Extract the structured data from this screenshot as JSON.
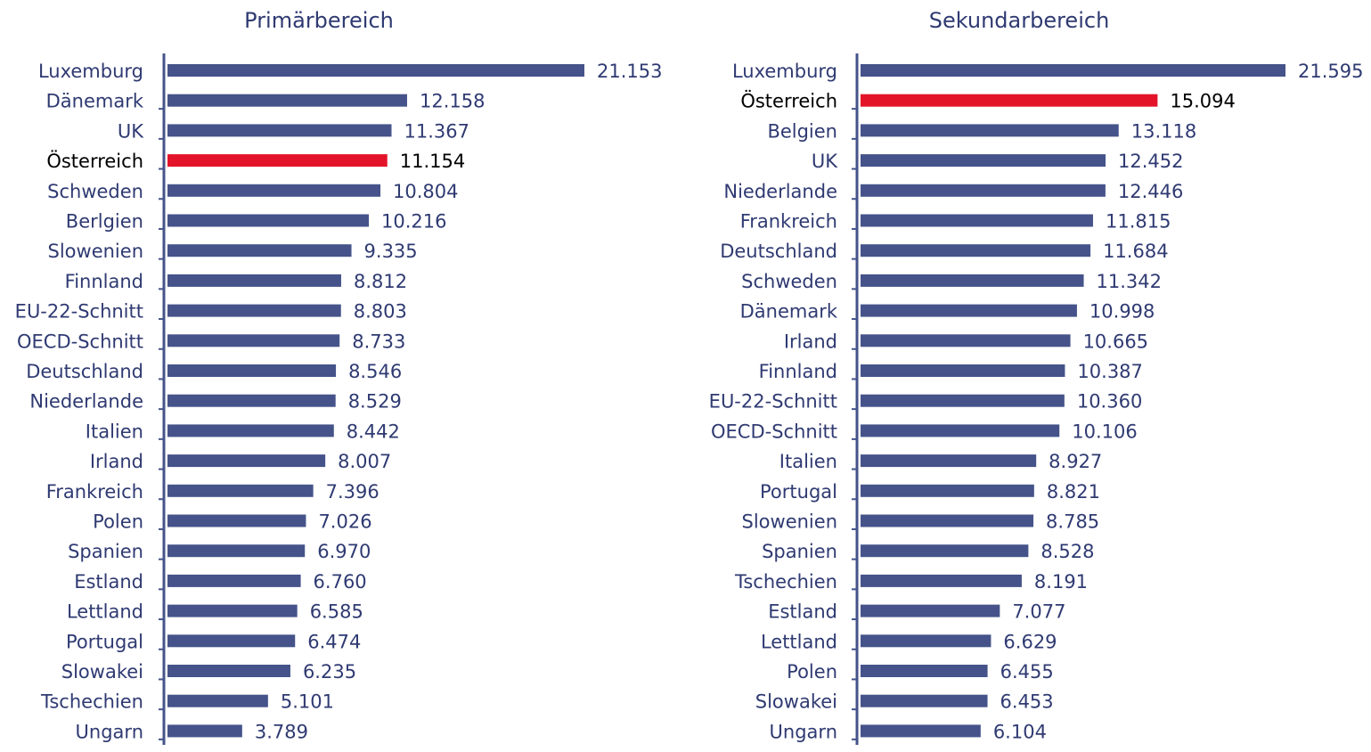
{
  "colors": {
    "bar": "#45538a",
    "highlight_bar": "#e3142a",
    "text": "#2f3a72",
    "highlight_text": "#000000",
    "axis": "#45538a"
  },
  "chart_data": [
    {
      "type": "bar",
      "orientation": "horizontal",
      "title": "Primärbereich",
      "highlight": "Österreich",
      "xlim": [
        0,
        21153
      ],
      "categories": [
        "Luxemburg",
        "Dänemark",
        "UK",
        "Österreich",
        "Schweden",
        "Berlgien",
        "Slowenien",
        "Finnland",
        "EU-22-Schnitt",
        "OECD-Schnitt",
        "Deutschland",
        "Niederlande",
        "Italien",
        "Irland",
        "Frankreich",
        "Polen",
        "Spanien",
        "Estland",
        "Lettland",
        "Portugal",
        "Slowakei",
        "Tschechien",
        "Ungarn"
      ],
      "values": [
        21153,
        12158,
        11367,
        11154,
        10804,
        10216,
        9335,
        8812,
        8803,
        8733,
        8546,
        8529,
        8442,
        8007,
        7396,
        7026,
        6970,
        6760,
        6585,
        6474,
        6235,
        5101,
        3789
      ],
      "value_labels": [
        "21.153",
        "12.158",
        "11.367",
        "11.154",
        "10.804",
        "10.216",
        "9.335",
        "8.812",
        "8.803",
        "8.733",
        "8.546",
        "8.529",
        "8.442",
        "8.007",
        "7.396",
        "7.026",
        "6.970",
        "6.760",
        "6.585",
        "6.474",
        "6.235",
        "5.101",
        "3.789"
      ]
    },
    {
      "type": "bar",
      "orientation": "horizontal",
      "title": "Sekundarbereich",
      "highlight": "Österreich",
      "xlim": [
        0,
        21595
      ],
      "categories": [
        "Luxemburg",
        "Österreich",
        "Belgien",
        "UK",
        "Niederlande",
        "Frankreich",
        "Deutschland",
        "Schweden",
        "Dänemark",
        "Irland",
        "Finnland",
        "EU-22-Schnitt",
        "OECD-Schnitt",
        "Italien",
        "Portugal",
        "Slowenien",
        "Spanien",
        "Tschechien",
        "Estland",
        "Lettland",
        "Polen",
        "Slowakei",
        "Ungarn"
      ],
      "values": [
        21595,
        15094,
        13118,
        12452,
        12446,
        11815,
        11684,
        11342,
        10998,
        10665,
        10387,
        10360,
        10106,
        8927,
        8821,
        8785,
        8528,
        8191,
        7077,
        6629,
        6455,
        6453,
        6104
      ],
      "value_labels": [
        "21.595",
        "15.094",
        "13.118",
        "12.452",
        "12.446",
        "11.815",
        "11.684",
        "11.342",
        "10.998",
        "10.665",
        "10.387",
        "10.360",
        "10.106",
        "8.927",
        "8.821",
        "8.785",
        "8.528",
        "8.191",
        "7.077",
        "6.629",
        "6.455",
        "6.453",
        "6.104"
      ]
    }
  ]
}
